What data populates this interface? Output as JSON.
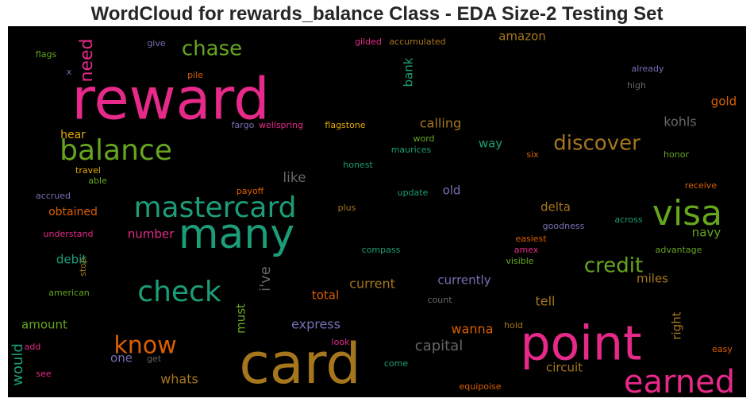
{
  "figure": {
    "title": "WordCloud for rewards_balance Class - EDA Size-2 Testing Set"
  },
  "chart_data": {
    "type": "wordcloud",
    "background": "#000000",
    "words": [
      {
        "text": "reward",
        "color": "#e7298a"
      },
      {
        "text": "card",
        "color": "#a6761d"
      },
      {
        "text": "point",
        "color": "#e7298a"
      },
      {
        "text": "many",
        "color": "#1b9e77"
      },
      {
        "text": "visa",
        "color": "#66a61e"
      },
      {
        "text": "mastercard",
        "color": "#1b9e77"
      },
      {
        "text": "balance",
        "color": "#66a61e"
      },
      {
        "text": "check",
        "color": "#1b9e77"
      },
      {
        "text": "earned",
        "color": "#e7298a"
      },
      {
        "text": "know",
        "color": "#d95f02"
      },
      {
        "text": "discover",
        "color": "#a6761d"
      },
      {
        "text": "credit",
        "color": "#66a61e"
      },
      {
        "text": "chase",
        "color": "#66a61e"
      },
      {
        "text": "need",
        "color": "#e7298a"
      },
      {
        "text": "capital",
        "color": "#666666"
      },
      {
        "text": "express",
        "color": "#7570b3"
      },
      {
        "text": "whats",
        "color": "#a6761d"
      },
      {
        "text": "wanna",
        "color": "#d95f02"
      },
      {
        "text": "like",
        "color": "#666666"
      },
      {
        "text": "would",
        "color": "#1b9e77"
      },
      {
        "text": "i've",
        "color": "#666666"
      },
      {
        "text": "currently",
        "color": "#7570b3"
      },
      {
        "text": "current",
        "color": "#a6761d"
      },
      {
        "text": "tell",
        "color": "#a6761d"
      },
      {
        "text": "calling",
        "color": "#a6761d"
      },
      {
        "text": "kohls",
        "color": "#666666"
      },
      {
        "text": "delta",
        "color": "#a6761d"
      },
      {
        "text": "circuit",
        "color": "#a6761d"
      },
      {
        "text": "navy",
        "color": "#66a61e"
      },
      {
        "text": "miles",
        "color": "#a6761d"
      },
      {
        "text": "number",
        "color": "#e7298a"
      },
      {
        "text": "obtained",
        "color": "#d95f02"
      },
      {
        "text": "debit",
        "color": "#1b9e77"
      },
      {
        "text": "amount",
        "color": "#66a61e"
      },
      {
        "text": "total",
        "color": "#d95f02"
      },
      {
        "text": "right",
        "color": "#a6761d"
      },
      {
        "text": "one",
        "color": "#7570b3"
      },
      {
        "text": "must",
        "color": "#66a61e"
      },
      {
        "text": "amazon",
        "color": "#a6761d"
      },
      {
        "text": "bank",
        "color": "#1b9e77"
      },
      {
        "text": "gold",
        "color": "#d95f02"
      },
      {
        "text": "way",
        "color": "#1b9e77"
      },
      {
        "text": "old",
        "color": "#7570b3"
      },
      {
        "text": "hear",
        "color": "#e6ab02"
      },
      {
        "text": "fargo",
        "color": "#7570b3"
      },
      {
        "text": "wellspring",
        "color": "#e7298a"
      },
      {
        "text": "flagstone",
        "color": "#e6ab02"
      },
      {
        "text": "gilded",
        "color": "#e7298a"
      },
      {
        "text": "accumulated",
        "color": "#a6761d"
      },
      {
        "text": "give",
        "color": "#7570b3"
      },
      {
        "text": "flags",
        "color": "#66a61e"
      },
      {
        "text": "x",
        "color": "#7570b3"
      },
      {
        "text": "pile",
        "color": "#d95f02"
      },
      {
        "text": "already",
        "color": "#7570b3"
      },
      {
        "text": "high",
        "color": "#666666"
      },
      {
        "text": "word",
        "color": "#66a61e"
      },
      {
        "text": "maurices",
        "color": "#1b9e77"
      },
      {
        "text": "six",
        "color": "#d95f02"
      },
      {
        "text": "honor",
        "color": "#66a61e"
      },
      {
        "text": "honest",
        "color": "#1b9e77"
      },
      {
        "text": "travel",
        "color": "#e6ab02"
      },
      {
        "text": "able",
        "color": "#66a61e"
      },
      {
        "text": "accrued",
        "color": "#7570b3"
      },
      {
        "text": "payoff",
        "color": "#d95f02"
      },
      {
        "text": "update",
        "color": "#1b9e77"
      },
      {
        "text": "receive",
        "color": "#d95f02"
      },
      {
        "text": "plus",
        "color": "#a6761d"
      },
      {
        "text": "across",
        "color": "#1b9e77"
      },
      {
        "text": "goodness",
        "color": "#7570b3"
      },
      {
        "text": "understand",
        "color": "#e7298a"
      },
      {
        "text": "easiest",
        "color": "#d95f02"
      },
      {
        "text": "compass",
        "color": "#1b9e77"
      },
      {
        "text": "amex",
        "color": "#e7298a"
      },
      {
        "text": "advantage",
        "color": "#66a61e"
      },
      {
        "text": "stop",
        "color": "#a6761d"
      },
      {
        "text": "visible",
        "color": "#66a61e"
      },
      {
        "text": "american",
        "color": "#66a61e"
      },
      {
        "text": "count",
        "color": "#666666"
      },
      {
        "text": "hold",
        "color": "#a6761d"
      },
      {
        "text": "add",
        "color": "#e7298a"
      },
      {
        "text": "look",
        "color": "#e7298a"
      },
      {
        "text": "easy",
        "color": "#d95f02"
      },
      {
        "text": "get",
        "color": "#666666"
      },
      {
        "text": "come",
        "color": "#1b9e77"
      },
      {
        "text": "see",
        "color": "#e7298a"
      },
      {
        "text": "equipoise",
        "color": "#d95f02"
      }
    ]
  }
}
